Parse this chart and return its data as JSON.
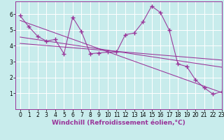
{
  "bg_color": "#c8ecec",
  "line_color": "#993399",
  "grid_color": "#ffffff",
  "xlim": [
    -0.5,
    23
  ],
  "ylim": [
    0,
    6.8
  ],
  "yticks": [
    1,
    2,
    3,
    4,
    5,
    6
  ],
  "xticks": [
    0,
    1,
    2,
    3,
    4,
    5,
    6,
    7,
    8,
    9,
    10,
    11,
    12,
    13,
    14,
    15,
    16,
    17,
    18,
    19,
    20,
    21,
    22,
    23
  ],
  "data_x": [
    0,
    1,
    2,
    3,
    4,
    5,
    6,
    7,
    8,
    9,
    10,
    11,
    12,
    13,
    14,
    15,
    16,
    17,
    18,
    19,
    20,
    21,
    22,
    23
  ],
  "data_y": [
    5.9,
    5.2,
    4.6,
    4.3,
    4.4,
    3.5,
    5.8,
    4.9,
    3.5,
    3.55,
    3.6,
    3.6,
    4.7,
    4.8,
    5.5,
    6.5,
    6.1,
    5.0,
    2.85,
    2.7,
    1.85,
    1.35,
    0.95,
    1.1
  ],
  "trend1_x": [
    0,
    23
  ],
  "trend1_y": [
    5.6,
    1.05
  ],
  "trend2_x": [
    0,
    23
  ],
  "trend2_y": [
    4.55,
    2.65
  ],
  "trend3_x": [
    0,
    23
  ],
  "trend3_y": [
    4.15,
    3.1
  ],
  "xlabel": "Windchill (Refroidissement éolien,°C)",
  "xlabel_fontsize": 6.5,
  "tick_fontsize": 5.5
}
